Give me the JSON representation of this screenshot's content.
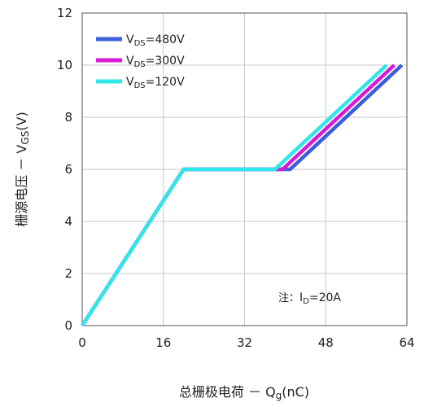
{
  "chart_data": {
    "type": "line",
    "xlabel_prefix": "总栅极电荷 － ",
    "xlabel_sym": "Q",
    "xlabel_sub": "g",
    "xlabel_unit": "(nC)",
    "ylabel_prefix": "栅源电压 － ",
    "ylabel_sym": "V",
    "ylabel_sub": "GS",
    "ylabel_unit": "(V)",
    "xlim": [
      0,
      64
    ],
    "ylim": [
      0,
      12
    ],
    "xticks": [
      "0",
      "16",
      "32",
      "48",
      "64"
    ],
    "yticks": [
      "0",
      "2",
      "4",
      "6",
      "8",
      "10",
      "12"
    ],
    "grid": true,
    "legend_position": "top-left",
    "series": [
      {
        "name_main": "V",
        "name_sub": "DS",
        "name_rest": "=480V",
        "color": "#3a5fd8",
        "x": [
          0,
          20,
          41,
          63
        ],
        "y": [
          0,
          6,
          6,
          10
        ]
      },
      {
        "name_main": "V",
        "name_sub": "DS",
        "name_rest": "=300V",
        "color": "#d61bd6",
        "x": [
          0,
          20,
          39.5,
          61.5
        ],
        "y": [
          0,
          6,
          6,
          10
        ]
      },
      {
        "name_main": "V",
        "name_sub": "DS",
        "name_rest": "=120V",
        "color": "#2fe6ea",
        "x": [
          0,
          20,
          38,
          60
        ],
        "y": [
          0,
          6,
          6,
          10
        ]
      }
    ],
    "annotation": {
      "prefix": "注：",
      "sym": "I",
      "sub": "D",
      "rest": "=20A"
    }
  }
}
